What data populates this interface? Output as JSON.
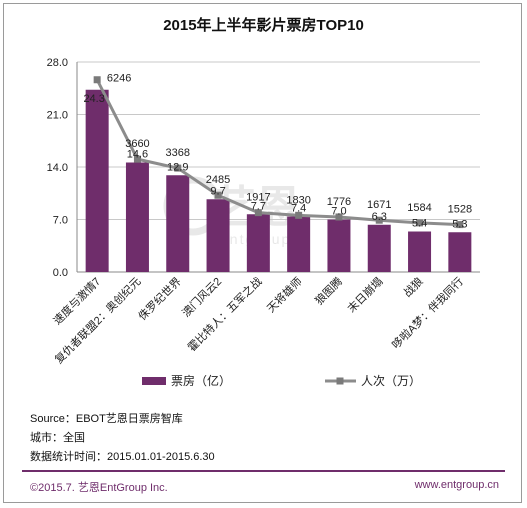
{
  "chart_data": {
    "type": "bar",
    "title": "2015年上半年影片票房TOP10",
    "categories": [
      "速度与激情7",
      "复仇者联盟2：奥创纪元",
      "侏罗纪世界",
      "澳门风云2",
      "霍比特人：五军之战",
      "天将雄师",
      "狼图腾",
      "末日崩塌",
      "战狼",
      "哆啦A梦：伴我同行"
    ],
    "series": [
      {
        "name": "票房（亿）",
        "type": "bar",
        "values": [
          24.3,
          14.6,
          12.9,
          9.7,
          7.7,
          7.4,
          7.0,
          6.3,
          5.4,
          5.3
        ],
        "labels": [
          "24.3",
          "14.6",
          "12.9",
          "9.7",
          "7.7",
          "7.4",
          "7.0",
          "6.3",
          "5.4",
          "5.3"
        ],
        "color": "#6f2d6b"
      },
      {
        "name": "人次（万）",
        "type": "line",
        "values": [
          6246,
          3660,
          3368,
          2485,
          1917,
          1830,
          1776,
          1671,
          1584,
          1528
        ],
        "color": "#8c8c8c"
      }
    ],
    "ylim": [
      0,
      28
    ],
    "yticks": [
      "0.0",
      "7.0",
      "14.0",
      "21.0",
      "28.0"
    ],
    "grid": true,
    "legend": "bottom",
    "watermark": "艺恩 entgroup"
  },
  "notes": {
    "source": "Source：EBOT艺恩日票房智库",
    "city": "城市：全国",
    "period": "数据统计时间：2015.01.01-2015.6.30"
  },
  "footer": {
    "copyright": "©2015.7. 艺恩EntGroup Inc.",
    "website": "www.entgroup.cn"
  }
}
